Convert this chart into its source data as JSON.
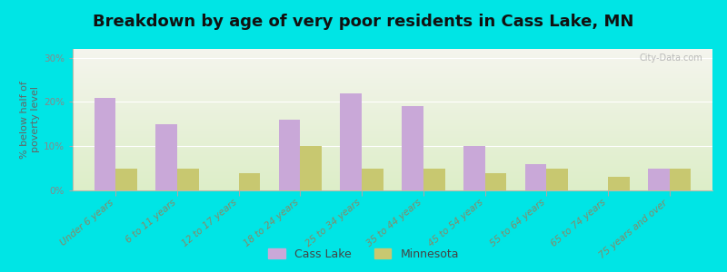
{
  "title": "Breakdown by age of very poor residents in Cass Lake, MN",
  "ylabel": "% below half of\npoverty level",
  "categories": [
    "Under 6 years",
    "6 to 11 years",
    "12 to 17 years",
    "18 to 24 years",
    "25 to 34 years",
    "35 to 44 years",
    "45 to 54 years",
    "55 to 64 years",
    "65 to 74 years",
    "75 years and over"
  ],
  "cass_lake": [
    21,
    15,
    0,
    16,
    22,
    19,
    10,
    6,
    0,
    5
  ],
  "minnesota": [
    5,
    5,
    4,
    10,
    5,
    5,
    4,
    5,
    3,
    5
  ],
  "cass_lake_color": "#c9a8d8",
  "minnesota_color": "#c8c870",
  "background_color": "#00e5e5",
  "grad_bottom": "#ddeec8",
  "grad_top": "#f5f5ee",
  "ylim": [
    0,
    32
  ],
  "yticks": [
    0,
    10,
    20,
    30
  ],
  "bar_width": 0.35,
  "title_fontsize": 13,
  "axis_label_fontsize": 8,
  "tick_fontsize": 7.5,
  "legend_fontsize": 9,
  "xtick_color": "#888866",
  "ytick_color": "#888888",
  "watermark": "City-Data.com"
}
